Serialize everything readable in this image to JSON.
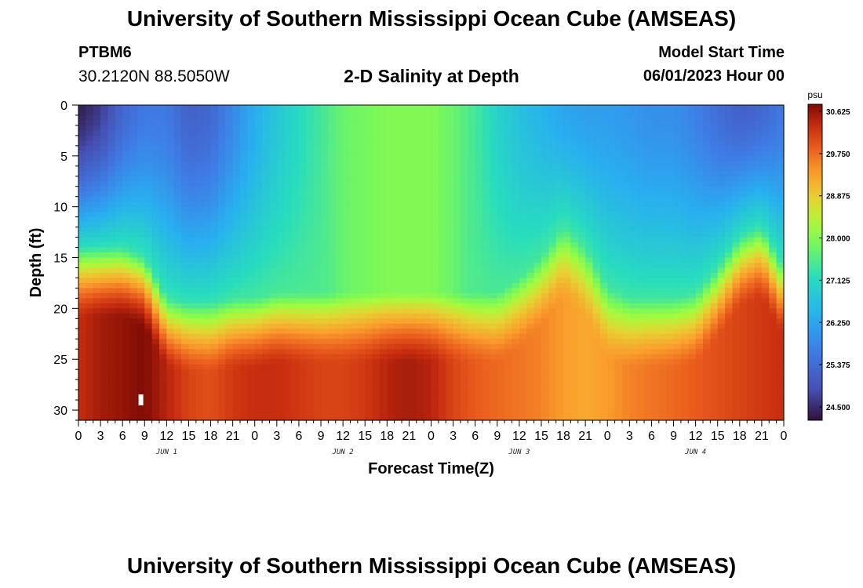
{
  "header": {
    "title": "University of Southern Mississippi Ocean Cube (AMSEAS)",
    "station": "PTBM6",
    "coords": "30.2120N  88.5050W",
    "plot_name": "2-D Salinity at Depth",
    "model_start_label": "Model Start Time",
    "model_start_value": "06/01/2023 Hour 00"
  },
  "footer": {
    "title": "University of Southern Mississippi Ocean Cube (AMSEAS)"
  },
  "colors": {
    "frame": "#000000",
    "marker": "#ffffff"
  },
  "chart_data": {
    "type": "heatmap",
    "title": "2-D Salinity at Depth",
    "xlabel": "Forecast Time(Z)",
    "ylabel": "Depth (ft)",
    "xlim": [
      0,
      96
    ],
    "ylim": [
      0,
      31
    ],
    "x_tick_values": [
      0,
      3,
      6,
      9,
      12,
      15,
      18,
      21,
      24,
      27,
      30,
      33,
      36,
      39,
      42,
      45,
      48,
      51,
      54,
      57,
      60,
      63,
      66,
      69,
      72,
      75,
      78,
      81,
      84,
      87,
      90,
      93,
      96
    ],
    "x_tick_labels": [
      "0",
      "3",
      "6",
      "9",
      "12",
      "15",
      "18",
      "21",
      "0",
      "3",
      "6",
      "9",
      "12",
      "15",
      "18",
      "21",
      "0",
      "3",
      "6",
      "9",
      "12",
      "15",
      "18",
      "21",
      "0",
      "3",
      "6",
      "9",
      "12",
      "15",
      "18",
      "21",
      "0"
    ],
    "day_labels": [
      {
        "label": "JUN 1",
        "x": 12
      },
      {
        "label": "JUN 2",
        "x": 36
      },
      {
        "label": "JUN 3",
        "x": 60
      },
      {
        "label": "JUN 4",
        "x": 84
      }
    ],
    "y_ticks": [
      0,
      5,
      10,
      15,
      20,
      25,
      30
    ],
    "colorbar": {
      "unit": "psu",
      "min": 24.5,
      "max": 30.625,
      "ticks": [
        "30.625",
        "29.750",
        "28.875",
        "28.000",
        "27.125",
        "26.250",
        "25.375",
        "24.500"
      ]
    },
    "marker": {
      "x": 8.5,
      "depth": 29
    },
    "surface_profile": {
      "hours": [
        0,
        3,
        6,
        9,
        12,
        15,
        18,
        21,
        24,
        27,
        30,
        33,
        36,
        39,
        42,
        45,
        48,
        51,
        54,
        57,
        60,
        63,
        66,
        69,
        72,
        75,
        78,
        81,
        84,
        87,
        90,
        93,
        96
      ],
      "salinity_0ft": [
        24.6,
        24.9,
        25.5,
        25.8,
        25.8,
        25.4,
        25.5,
        26.0,
        26.5,
        26.9,
        27.2,
        27.5,
        27.8,
        27.9,
        28.0,
        28.0,
        28.0,
        27.8,
        27.5,
        27.1,
        26.8,
        26.6,
        26.4,
        26.3,
        26.3,
        26.2,
        26.1,
        26.1,
        25.9,
        25.6,
        25.4,
        25.5,
        25.8
      ]
    },
    "halocline_depth_ft": {
      "hours": [
        0,
        3,
        6,
        9,
        12,
        15,
        18,
        21,
        24,
        27,
        30,
        33,
        36,
        39,
        42,
        45,
        48,
        51,
        54,
        57,
        60,
        63,
        66,
        69,
        72,
        75,
        78,
        81,
        84,
        87,
        90,
        93,
        96
      ],
      "depth": [
        17,
        17,
        17,
        18,
        22,
        22.5,
        22.5,
        22,
        22,
        21.5,
        21.5,
        21.5,
        21.5,
        21.5,
        21.5,
        21.5,
        21.5,
        21.5,
        21.5,
        21.5,
        20,
        18,
        15,
        17,
        21,
        22,
        22,
        22,
        21.5,
        19,
        16,
        15,
        19
      ]
    },
    "bottom_salinity_30ft": {
      "hours": [
        0,
        3,
        6,
        9,
        12,
        15,
        18,
        21,
        24,
        27,
        30,
        33,
        36,
        39,
        42,
        45,
        48,
        51,
        54,
        57,
        60,
        63,
        66,
        69,
        72,
        75,
        78,
        81,
        84,
        87,
        90,
        93,
        96
      ],
      "salinity": [
        30.2,
        30.4,
        30.5,
        30.6,
        30.3,
        30.0,
        29.9,
        30.1,
        30.2,
        30.2,
        30.1,
        30.0,
        30.0,
        30.1,
        30.3,
        30.4,
        30.3,
        30.0,
        29.8,
        29.7,
        29.6,
        29.5,
        29.3,
        29.2,
        29.3,
        29.5,
        29.6,
        29.7,
        29.8,
        29.9,
        30.0,
        30.1,
        30.2
      ]
    }
  }
}
